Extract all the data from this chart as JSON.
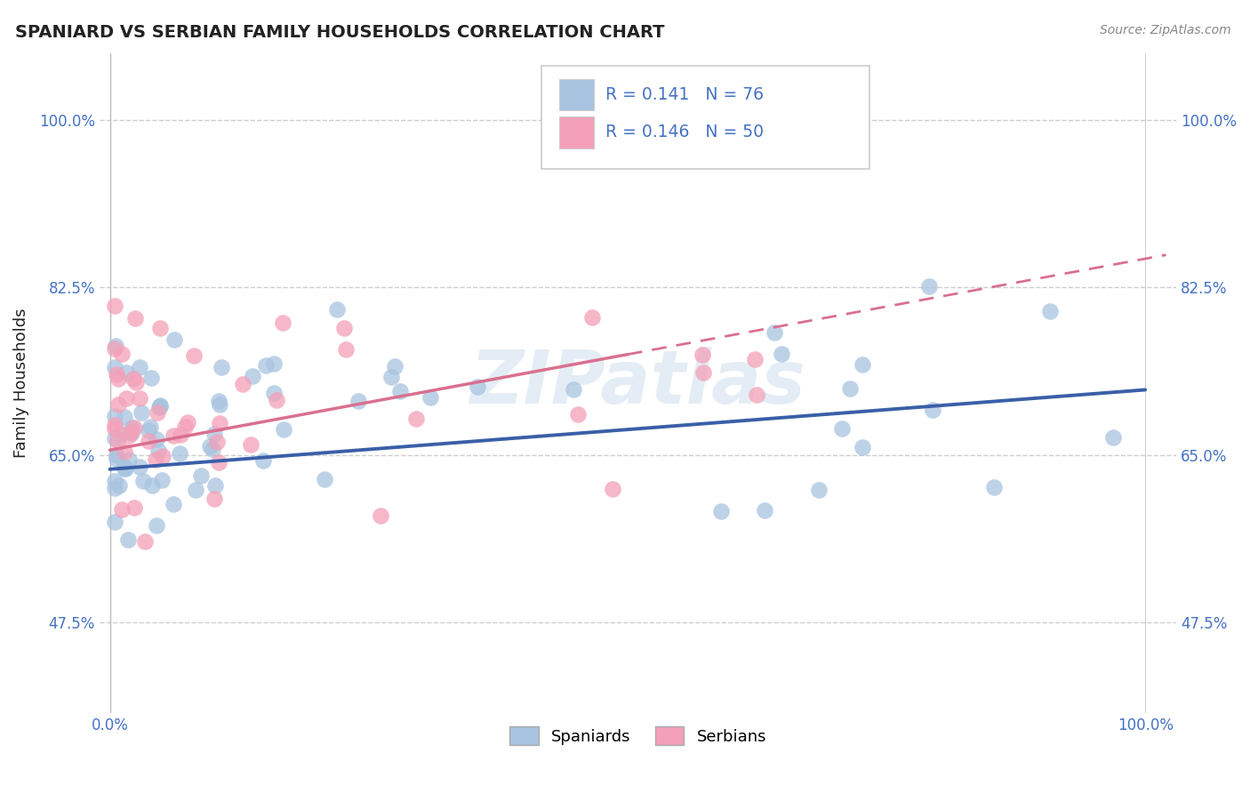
{
  "title": "SPANIARD VS SERBIAN FAMILY HOUSEHOLDS CORRELATION CHART",
  "source_text": "Source: ZipAtlas.com",
  "ylabel": "Family Households",
  "ytick_labels": [
    "47.5%",
    "65.0%",
    "82.5%",
    "100.0%"
  ],
  "ytick_values": [
    0.475,
    0.65,
    0.825,
    1.0
  ],
  "xlim": [
    -0.01,
    1.03
  ],
  "ylim": [
    0.38,
    1.07
  ],
  "spaniards_R": "0.141",
  "spaniards_N": "76",
  "serbians_R": "0.146",
  "serbians_N": "50",
  "spaniard_color": "#a8c4e0",
  "serbian_color": "#f4a0b8",
  "spaniard_line_color": "#3a5fa8",
  "serbian_line_color": "#d97090",
  "watermark": "ZIPatlas",
  "legend_R_color": "#4472c4",
  "grid_color": "#cccccc",
  "title_color": "#222222",
  "source_color": "#888888",
  "tick_color": "#4472c4",
  "bg_color": "#ffffff",
  "sp_line_start_y": 0.635,
  "sp_line_end_y": 0.718,
  "sr_line_start_y": 0.655,
  "sr_line_end_y": 0.755,
  "sr_line_x_end": 0.5
}
